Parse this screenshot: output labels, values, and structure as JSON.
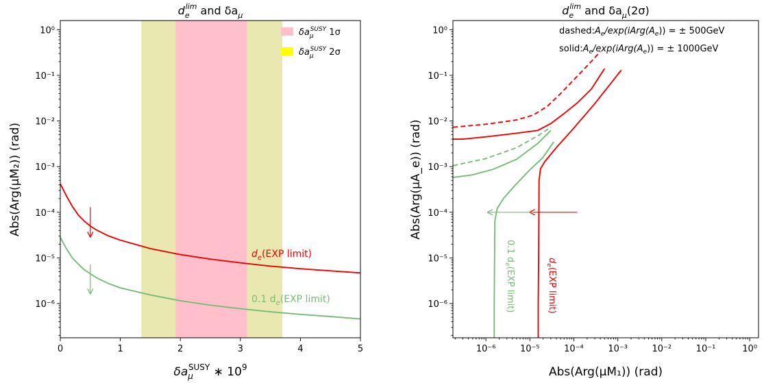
{
  "chart_data": [
    {
      "type": "line",
      "title_main": "d",
      "title_sub": "e",
      "title_sup": "lim",
      "title_rest": " and δa",
      "title_rest_sub": "μ",
      "xlabel_main": "δa",
      "xlabel_sub": "μ",
      "xlabel_sup": "SUSY",
      "xlabel_rest": " ∗ 10",
      "xlabel_rest_sup": "9",
      "ylabel": "Abs(Arg(μM₂)) (rad)",
      "xlim": [
        0,
        5
      ],
      "ylim_log10": [
        -6.75,
        0.2
      ],
      "y_scale": "log",
      "x_ticks": [
        {
          "v": 0,
          "label": "0"
        },
        {
          "v": 1,
          "label": "1"
        },
        {
          "v": 2,
          "label": "2"
        },
        {
          "v": 3,
          "label": "3"
        },
        {
          "v": 4,
          "label": "4"
        },
        {
          "v": 5,
          "label": "5"
        }
      ],
      "y_ticks": [
        {
          "e": -6,
          "label": "10⁻⁶"
        },
        {
          "e": -5,
          "label": "10⁻⁵"
        },
        {
          "e": -4,
          "label": "10⁻⁴"
        },
        {
          "e": -3,
          "label": "10⁻³"
        },
        {
          "e": -2,
          "label": "10⁻²"
        },
        {
          "e": -1,
          "label": "10⁻¹"
        },
        {
          "e": 0,
          "label": "10⁰"
        }
      ],
      "bands": [
        {
          "name": "δa_μ^SUSY 2σ",
          "x0": 1.35,
          "x1": 3.7,
          "color": "#e8e8b0"
        },
        {
          "name": "δa_μ^SUSY 1σ",
          "x0": 1.92,
          "x1": 3.11,
          "color": "#ffc0cb"
        }
      ],
      "legend": [
        {
          "label": "δa",
          "sub": "μ",
          "sup": "SUSY",
          "suffix": " 1σ",
          "color": "#ffc0cb"
        },
        {
          "label": "δa",
          "sub": "μ",
          "sup": "SUSY",
          "suffix": " 2σ",
          "color": "#ffff00"
        }
      ],
      "legend_position": "top-right",
      "series": [
        {
          "name": "d_e(EXP limit)",
          "color": "#ee0000",
          "style": "solid",
          "x": [
            0,
            0.1,
            0.2,
            0.3,
            0.4,
            0.5,
            0.6,
            0.8,
            1.0,
            1.5,
            2.0,
            2.5,
            3.0,
            3.5,
            4.0,
            4.5,
            5.0
          ],
          "y": [
            0.00042,
            0.00023,
            0.000135,
            8.7e-05,
            6.4e-05,
            5e-05,
            4.1e-05,
            3.05e-05,
            2.45e-05,
            1.6e-05,
            1.18e-05,
            9.4e-06,
            7.8e-06,
            6.6e-06,
            5.8e-06,
            5.2e-06,
            4.7e-06
          ]
        },
        {
          "name": "0.1 d_e(EXP limit)",
          "color": "#77bb77",
          "style": "solid",
          "x": [
            0,
            0.1,
            0.2,
            0.3,
            0.4,
            0.5,
            0.6,
            0.8,
            1.0,
            1.5,
            2.0,
            2.5,
            3.0,
            3.5,
            4.0,
            4.5,
            5.0
          ],
          "y": [
            2.8e-05,
            1.6e-05,
            1e-05,
            7.3e-06,
            5.5e-06,
            4.5e-06,
            3.7e-06,
            2.75e-06,
            2.2e-06,
            1.55e-06,
            1.15e-06,
            9.2e-07,
            7.7e-07,
            6.6e-07,
            5.8e-07,
            5.2e-07,
            4.6e-07
          ]
        }
      ],
      "annotations": [
        {
          "text": "d",
          "sub": "e",
          "rest": "(EXP limit)",
          "color": "#ee0000",
          "x": 3.2,
          "y": 1.35e-05
        },
        {
          "text": "0.1 d",
          "sub": "e",
          "rest": "(EXP limit)",
          "color": "#77bb77",
          "x": 3.2,
          "y": 1.12e-06
        }
      ],
      "arrows": [
        {
          "color": "#ee0000",
          "x": 0.5,
          "y_from": 0.00013,
          "y_to": 2.9e-05
        },
        {
          "color": "#77bb77",
          "x": 0.5,
          "y_from": 7.2e-06,
          "y_to": 1.65e-06
        }
      ]
    },
    {
      "type": "line",
      "title_main": "d",
      "title_sub": "e",
      "title_sup": "lim",
      "title_rest": " and δa",
      "title_rest_sub": "μ",
      "title_tail": "(2σ)",
      "xlabel": "Abs(Arg(μM₁)) (rad)",
      "ylabel": "Abs(Arg(μA_e)) (rad)",
      "x_scale": "log",
      "y_scale": "log",
      "xlim_log10": [
        -6.75,
        0.2
      ],
      "ylim_log10": [
        -6.75,
        0.2
      ],
      "x_ticks": [
        {
          "e": -6,
          "label": "10⁻⁶"
        },
        {
          "e": -5,
          "label": "10⁻⁵"
        },
        {
          "e": -4,
          "label": "10⁻⁴"
        },
        {
          "e": -3,
          "label": "10⁻³"
        },
        {
          "e": -2,
          "label": "10⁻²"
        },
        {
          "e": -1,
          "label": "10⁻¹"
        },
        {
          "e": 0,
          "label": "10⁰"
        }
      ],
      "y_ticks": [
        {
          "e": -6,
          "label": "10⁻⁶"
        },
        {
          "e": -5,
          "label": "10⁻⁵"
        },
        {
          "e": -4,
          "label": "10⁻⁴"
        },
        {
          "e": -3,
          "label": "10⁻³"
        },
        {
          "e": -2,
          "label": "10⁻²"
        },
        {
          "e": -1,
          "label": "10⁻¹"
        },
        {
          "e": 0,
          "label": "10⁰"
        }
      ],
      "notes": [
        {
          "prefix": "dashed:",
          "body": "A",
          "sub": "e",
          "mid": "/exp(iArg(A",
          "sub2": "e",
          "end": ")) = ± 500GeV"
        },
        {
          "prefix": "solid:",
          "body": "A",
          "sub": "e",
          "mid": "/exp(iArg(A",
          "sub2": "e",
          "end": ")) = ± 1000GeV"
        }
      ],
      "series": [
        {
          "name": "d_e(EXP limit) dashed",
          "color": "#ee0000",
          "style": "dashed",
          "x": [
            1.8e-07,
            1e-06,
            5e-06,
            1.2e-05,
            2.5e-05,
            5e-05,
            0.0001,
            0.0002,
            0.0004
          ],
          "y": [
            0.0073,
            0.0085,
            0.0105,
            0.0135,
            0.021,
            0.04,
            0.08,
            0.16,
            0.33
          ]
        },
        {
          "name": "d_e(EXP limit) solid upper",
          "color": "#ee0000",
          "style": "solid",
          "x": [
            1.8e-07,
            3e-07,
            1e-06,
            5e-06,
            1.5e-05,
            3e-05,
            6e-05,
            0.00012,
            0.00025,
            0.0005
          ],
          "y": [
            0.004,
            0.004,
            0.0045,
            0.0054,
            0.0062,
            0.0088,
            0.0145,
            0.025,
            0.05,
            0.14
          ]
        },
        {
          "name": "d_e(EXP limit)",
          "color": "#ee0000",
          "style": "solid",
          "x": [
            1.55e-05,
            1.55e-05,
            1.58e-05,
            1.62e-05,
            1.75e-05,
            2.2e-05,
            4e-05,
            0.0001,
            0.0003,
            0.0012
          ],
          "y": [
            1.4e-07,
            1e-06,
            1e-05,
            0.0005,
            0.0009,
            0.0013,
            0.0026,
            0.007,
            0.024,
            0.13
          ]
        },
        {
          "name": "0.1 d_e(EXP limit) dashed",
          "color": "#77bb77",
          "style": "dashed",
          "x": [
            1.8e-07,
            1e-06,
            5e-06,
            1.5e-05,
            3e-05
          ],
          "y": [
            0.00105,
            0.0015,
            0.0026,
            0.0047,
            0.0073
          ]
        },
        {
          "name": "0.1 d_e(EXP limit) solid upper",
          "color": "#77bb77",
          "style": "solid",
          "x": [
            1.8e-07,
            5e-07,
            1.5e-06,
            5e-06,
            1.5e-05,
            3e-05
          ],
          "y": [
            0.00058,
            0.00066,
            0.00088,
            0.00145,
            0.0032,
            0.0062
          ]
        },
        {
          "name": "0.1 d_e(EXP limit)",
          "color": "#77bb77",
          "style": "solid",
          "x": [
            1.55e-06,
            1.55e-06,
            1.6e-06,
            1.8e-06,
            2.5e-06,
            4.5e-06,
            1e-05,
            2e-05,
            3.5e-05
          ],
          "y": [
            1.4e-07,
            1e-06,
            6.5e-05,
            0.00012,
            0.0002,
            0.00038,
            0.00085,
            0.0016,
            0.0035
          ]
        }
      ],
      "annotations": [
        {
          "text": "0.1 d",
          "sub": "e",
          "rest": "(EXP limit)",
          "color": "#77bb77",
          "x": 2.6e-06,
          "y": 7e-07,
          "rotate": 90
        },
        {
          "text": "d",
          "sub": "e",
          "rest": "(EXP limit)",
          "color": "#ee0000",
          "x": 2.7e-05,
          "y": 7e-07,
          "rotate": 90
        }
      ],
      "arrows": [
        {
          "color": "#ee0000",
          "x_from": 0.00012,
          "x_to": 1e-05,
          "y": 0.0001
        },
        {
          "color": "#77bb77",
          "x_from": 1.2e-05,
          "x_to": 1.1e-06,
          "y": 0.0001
        }
      ]
    }
  ]
}
